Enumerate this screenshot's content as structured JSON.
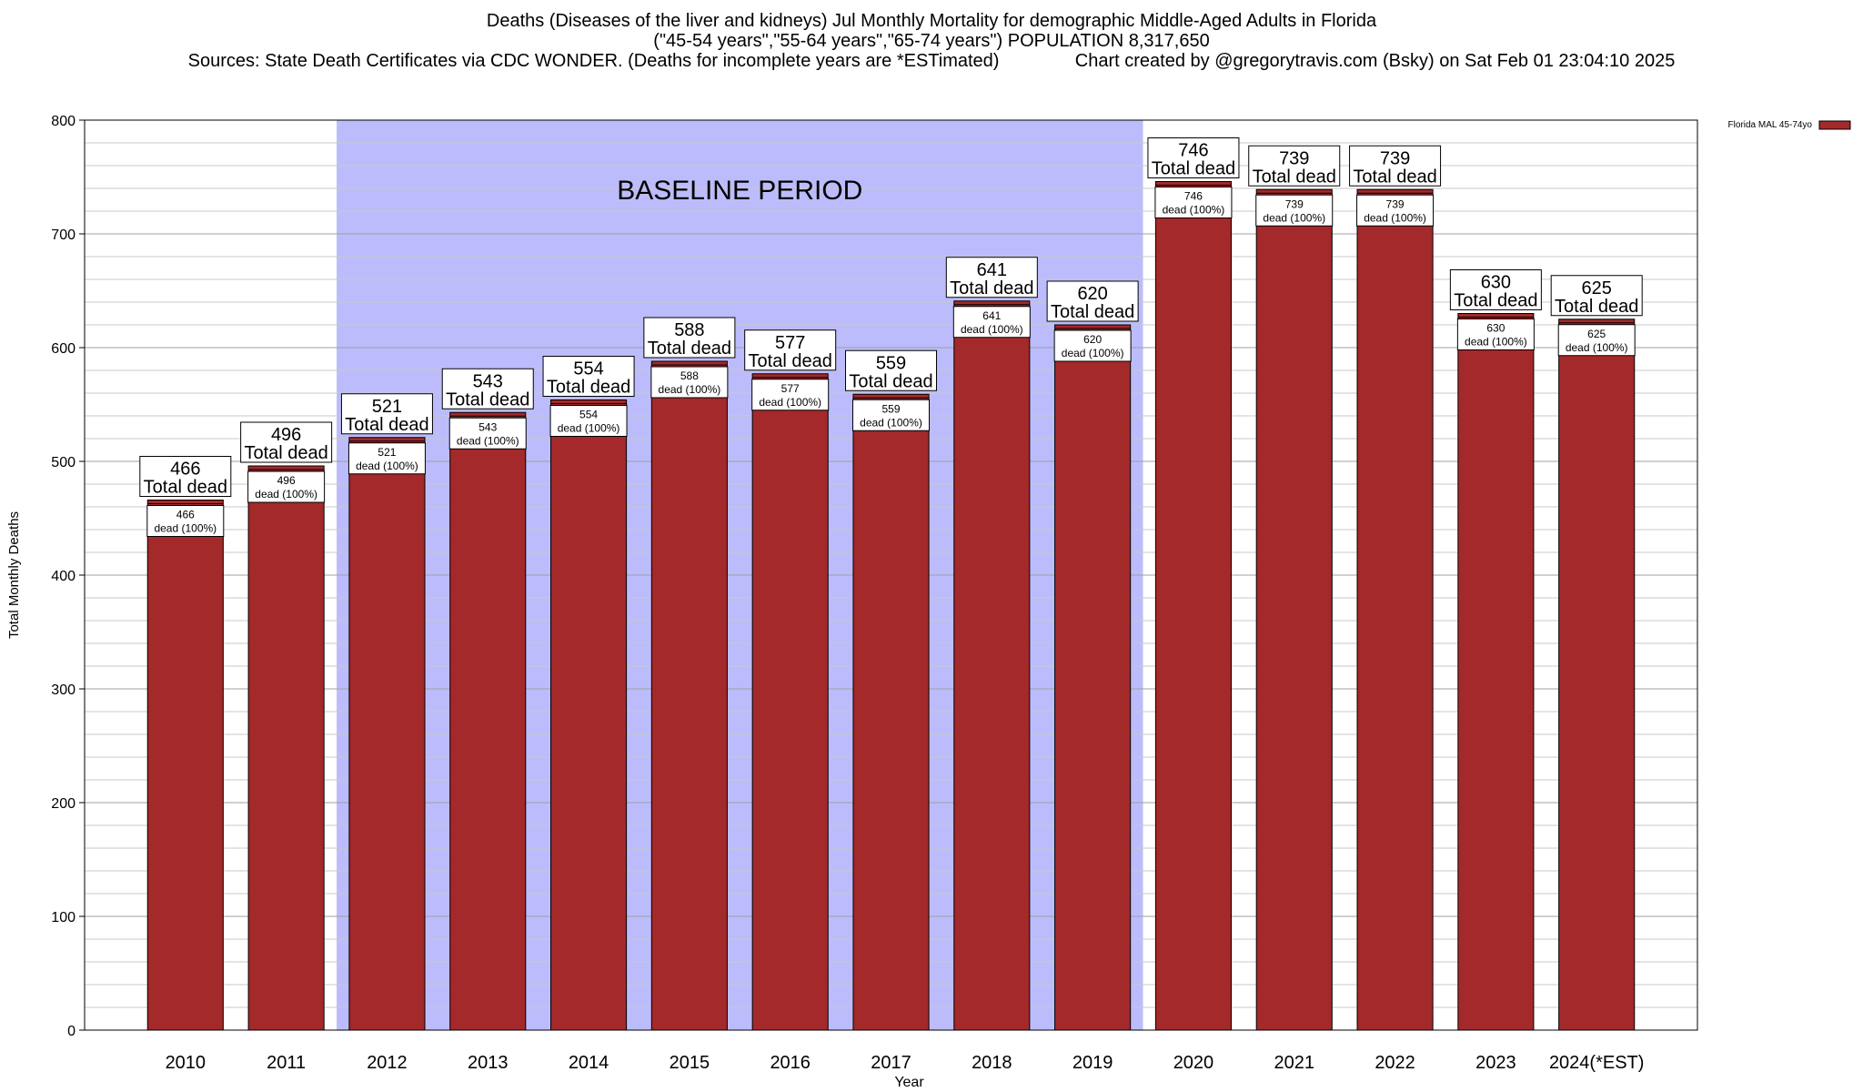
{
  "chart_data": {
    "type": "bar",
    "title_lines": [
      "Deaths (Diseases of the liver and kidneys) Jul Monthly Mortality for demographic Middle-Aged Adults in Florida",
      "(\"45-54 years\",\"55-64 years\",\"65-74 years\") POPULATION 8,317,650",
      "Sources: State Death Certificates via CDC WONDER. (Deaths for incomplete years are *ESTimated)               Chart created by @gregorytravis.com (Bsky) on Sat Feb 01 23:04:10 2025"
    ],
    "xlabel": "Year",
    "ylabel": "Total Monthly Deaths",
    "ylim": [
      0,
      800
    ],
    "y_ticks": [
      0,
      100,
      200,
      300,
      400,
      500,
      600,
      700,
      800
    ],
    "categories": [
      "2010",
      "2011",
      "2012",
      "2013",
      "2014",
      "2015",
      "2016",
      "2017",
      "2018",
      "2019",
      "2020",
      "2021",
      "2022",
      "2023",
      "2024(*EST)"
    ],
    "series": [
      {
        "name": "Florida MAL 45-74yo",
        "color": "#a3292b",
        "values": [
          466,
          496,
          521,
          543,
          554,
          588,
          577,
          559,
          641,
          620,
          746,
          739,
          739,
          630,
          625
        ]
      }
    ],
    "top_label_suffix": "Total dead",
    "inner_label_suffix": "dead (100%)",
    "baseline_period": {
      "label": "BASELINE PERIOD",
      "from": "2012",
      "to": "2019",
      "color": "#bcbcfc"
    },
    "grid": true,
    "legend_position": "top-right"
  }
}
